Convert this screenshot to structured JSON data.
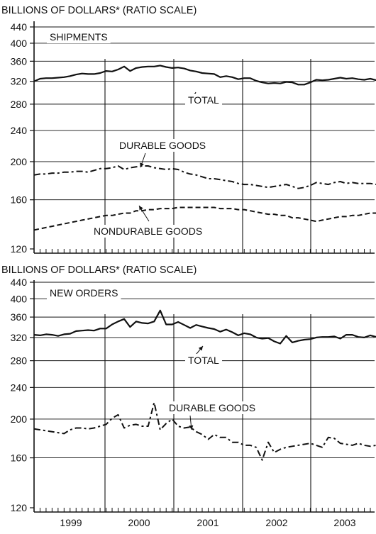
{
  "chart_data": [
    {
      "type": "line",
      "y_scale": "log",
      "header": "BILLIONS OF DOLLARS* (RATIO SCALE)",
      "panel_title": "SHIPMENTS",
      "yticks": [
        120,
        160,
        200,
        240,
        280,
        320,
        360,
        400,
        440
      ],
      "ylim": [
        120,
        440
      ],
      "x_start": "1998-10",
      "x_end": "2003-06",
      "year_labels": [
        "1999",
        "2000",
        "2001",
        "2002",
        "2003"
      ],
      "grid": "horizontal at tick values",
      "series": [
        {
          "name": "TOTAL",
          "style": "solid",
          "values": [
            320,
            325,
            326,
            326,
            327,
            328,
            330,
            333,
            335,
            334,
            334,
            336,
            340,
            339,
            343,
            349,
            340,
            346,
            348,
            349,
            349,
            351,
            348,
            346,
            347,
            345,
            341,
            339,
            336,
            335,
            334,
            328,
            330,
            328,
            324,
            326,
            326,
            321,
            318,
            316,
            317,
            316,
            319,
            318,
            314,
            314,
            318,
            323,
            322,
            323,
            325,
            327,
            325,
            326,
            324,
            323,
            325,
            322,
            322,
            327,
            326,
            324,
            330
          ]
        },
        {
          "name": "DURABLE GOODS",
          "style": "dash-dot",
          "values": [
            185,
            186,
            186,
            187,
            187,
            188,
            188,
            189,
            189,
            188,
            190,
            192,
            192,
            193,
            195,
            191,
            193,
            194,
            195,
            195,
            193,
            192,
            191,
            192,
            191,
            188,
            186,
            185,
            183,
            181,
            181,
            180,
            179,
            178,
            176,
            175,
            175,
            174,
            173,
            172,
            173,
            174,
            175,
            173,
            171,
            172,
            174,
            177,
            176,
            175,
            177,
            178,
            176,
            177,
            176,
            176,
            176,
            175,
            173,
            174,
            175,
            174,
            174
          ]
        },
        {
          "name": "NONDURABLE GOODS",
          "style": "dashed",
          "values": [
            134,
            135,
            136,
            137,
            138,
            139,
            140,
            141,
            142,
            143,
            144,
            145,
            146,
            146,
            147,
            148,
            148,
            150,
            150,
            151,
            151,
            152,
            152,
            152,
            153,
            153,
            153,
            153,
            153,
            153,
            153,
            152,
            152,
            152,
            151,
            151,
            150,
            149,
            148,
            147,
            147,
            146,
            146,
            144,
            144,
            143,
            142,
            141,
            142,
            143,
            144,
            145,
            145,
            146,
            146,
            147,
            148,
            148,
            149,
            150,
            151,
            150,
            154
          ]
        }
      ]
    },
    {
      "type": "line",
      "y_scale": "log",
      "header": "BILLIONS OF DOLLARS* (RATIO SCALE)",
      "panel_title": "NEW ORDERS",
      "yticks": [
        120,
        160,
        200,
        240,
        280,
        320,
        360,
        400,
        440
      ],
      "ylim": [
        120,
        440
      ],
      "x_start": "1998-10",
      "x_end": "2003-06",
      "year_labels": [
        "1999",
        "2000",
        "2001",
        "2002",
        "2003"
      ],
      "grid": "horizontal at tick values",
      "series": [
        {
          "name": "TOTAL",
          "style": "solid",
          "values": [
            325,
            324,
            326,
            325,
            323,
            326,
            327,
            332,
            333,
            334,
            333,
            337,
            337,
            345,
            351,
            356,
            340,
            351,
            348,
            347,
            351,
            374,
            345,
            345,
            350,
            344,
            338,
            344,
            341,
            338,
            336,
            331,
            335,
            330,
            324,
            328,
            326,
            320,
            318,
            319,
            313,
            309,
            323,
            311,
            314,
            316,
            317,
            320,
            321,
            321,
            322,
            318,
            325,
            325,
            321,
            320,
            324,
            321,
            322,
            325,
            327,
            325,
            330
          ]
        },
        {
          "name": "DURABLE GOODS",
          "style": "dash-dot",
          "values": [
            189,
            188,
            187,
            186,
            185,
            184,
            188,
            190,
            190,
            189,
            190,
            192,
            194,
            201,
            205,
            190,
            193,
            194,
            192,
            192,
            220,
            188,
            195,
            200,
            192,
            190,
            191,
            186,
            183,
            178,
            183,
            180,
            180,
            175,
            175,
            172,
            172,
            170,
            158,
            175,
            165,
            168,
            170,
            171,
            172,
            173,
            174,
            172,
            170,
            180,
            179,
            174,
            173,
            172,
            174,
            172,
            171,
            172,
            172,
            173,
            172,
            175,
            174
          ]
        }
      ]
    }
  ]
}
